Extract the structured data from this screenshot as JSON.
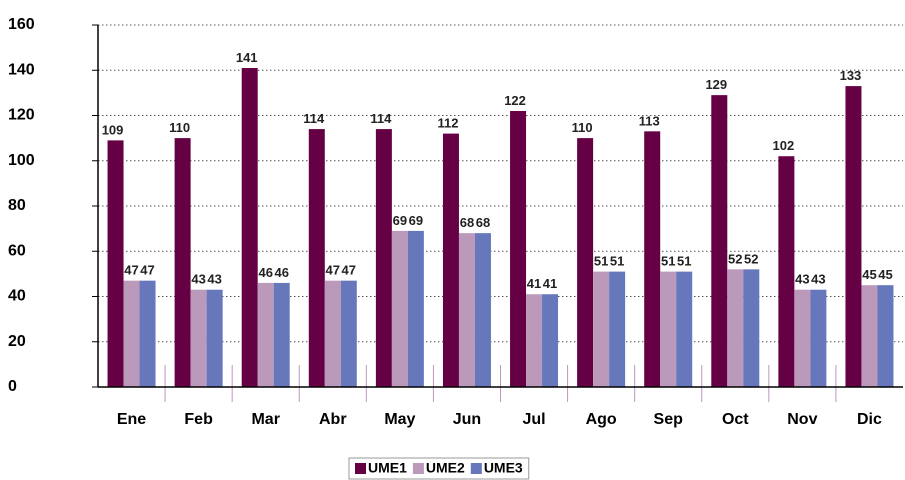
{
  "chart_data": {
    "type": "bar",
    "categories": [
      "Ene",
      "Feb",
      "Mar",
      "Abr",
      "May",
      "Jun",
      "Jul",
      "Ago",
      "Sep",
      "Oct",
      "Nov",
      "Dic"
    ],
    "series": [
      {
        "name": "UME1",
        "color": "#660044",
        "values": [
          109,
          110,
          141,
          114,
          114,
          112,
          122,
          110,
          113,
          129,
          102,
          133
        ]
      },
      {
        "name": "UME2",
        "color": "#bb99bb",
        "values": [
          47,
          43,
          46,
          47,
          69,
          68,
          41,
          51,
          51,
          52,
          43,
          45
        ]
      },
      {
        "name": "UME3",
        "color": "#6677bb",
        "values": [
          47,
          43,
          46,
          47,
          69,
          68,
          41,
          51,
          51,
          52,
          43,
          45
        ]
      }
    ],
    "ylim": [
      0,
      160
    ],
    "yticks": [
      0,
      20,
      40,
      60,
      80,
      100,
      120,
      140,
      160
    ],
    "grid": true,
    "legend": "bottom"
  }
}
